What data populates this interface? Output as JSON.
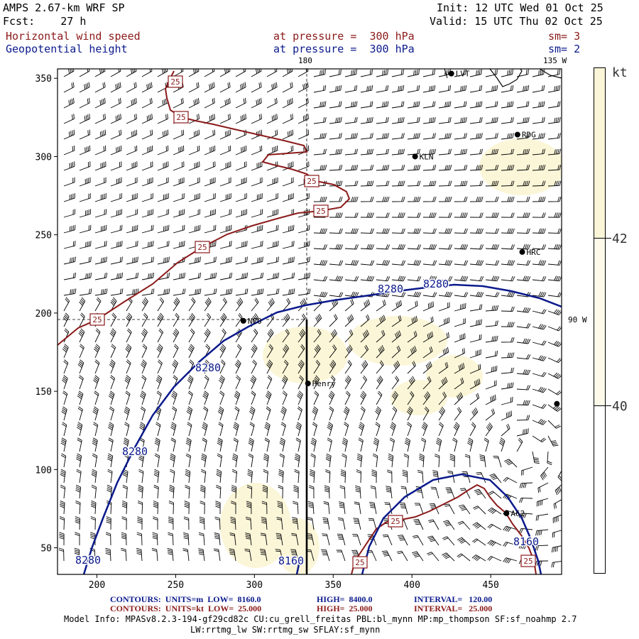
{
  "header": {
    "model": "AMPS 2.67-km WRF SP",
    "forecast": "Fcst:    27 h",
    "init": "Init: 12 UTC Wed 01 Oct 25",
    "valid": "Valid: 15 UTC Thu 02 Oct 25",
    "field1": {
      "name": "Horizontal wind speed",
      "level": "at pressure =  300 hPa",
      "smooth": "sm= 3"
    },
    "field2": {
      "name": "Geopotential height",
      "level": "at pressure =  300 hPa",
      "smooth": "sm= 2"
    }
  },
  "map": {
    "x_axis": {
      "range": [
        175,
        495
      ],
      "ticks": [
        "200",
        "250",
        "300",
        "350",
        "400",
        "450"
      ]
    },
    "y_axis": {
      "range": [
        33,
        356
      ],
      "ticks": [
        "50",
        "100",
        "150",
        "200",
        "250",
        "300",
        "350"
      ]
    },
    "meridian_labels": {
      "top": "180",
      "top_right": "135 W",
      "right": "90 W"
    },
    "stations": [
      {
        "id": "LVT",
        "label": "LVT",
        "x": 425,
        "y": 353
      },
      {
        "id": "RDG",
        "label": "RDG",
        "x": 467,
        "y": 314
      },
      {
        "id": "KLN",
        "label": "KLN",
        "x": 402,
        "y": 300
      },
      {
        "id": "HRC",
        "label": "HRC",
        "x": 470,
        "y": 239
      },
      {
        "id": "NCO",
        "label": "NCO",
        "x": 293,
        "y": 195
      },
      {
        "id": "Henry",
        "label": "Henry",
        "x": 334,
        "y": 155
      },
      {
        "id": "A62",
        "label": "A62",
        "x": 460,
        "y": 72
      },
      {
        "id": "EDGE",
        "label": "",
        "x": 492,
        "y": 142
      }
    ],
    "height_contour_labels": [
      "8280",
      "8280",
      "8280",
      "8280",
      "8280",
      "8160",
      "8160"
    ],
    "wind_contour_labels": [
      "25",
      "25",
      "25",
      "25",
      "25",
      "25",
      "25",
      "25",
      "25"
    ]
  },
  "colorbar": {
    "unit": "kt",
    "levels": [
      "40",
      "42"
    ],
    "fill_color": "#fbf6d8"
  },
  "footer": {
    "line1": {
      "left": "CONTOURS:  UNITS=m  LOW=  8160.0",
      "mid": "HIGH=  8400.0",
      "right": "INTERVAL=   120.00"
    },
    "line2": {
      "left": "CONTOURS:  UNITS=kt  LOW=  25.000",
      "mid": "HIGH=  25.000",
      "right": "INTERVAL=   25.000"
    },
    "model_info": "Model Info: MPASv8.2.3-194-gf29cd82c CU:cu_grell_freitas PBL:bl_mynn MP:mp_thompson SF:sf_noahmp 2.7",
    "model_info2": "LW:rrtmg_lw SW:rrtmg_sw SFLAY:sf_mynn"
  },
  "colors": {
    "height_contour": "#0b1a8c",
    "wind_contour": "#8b1a1a",
    "shading": "#fbf6d8"
  }
}
